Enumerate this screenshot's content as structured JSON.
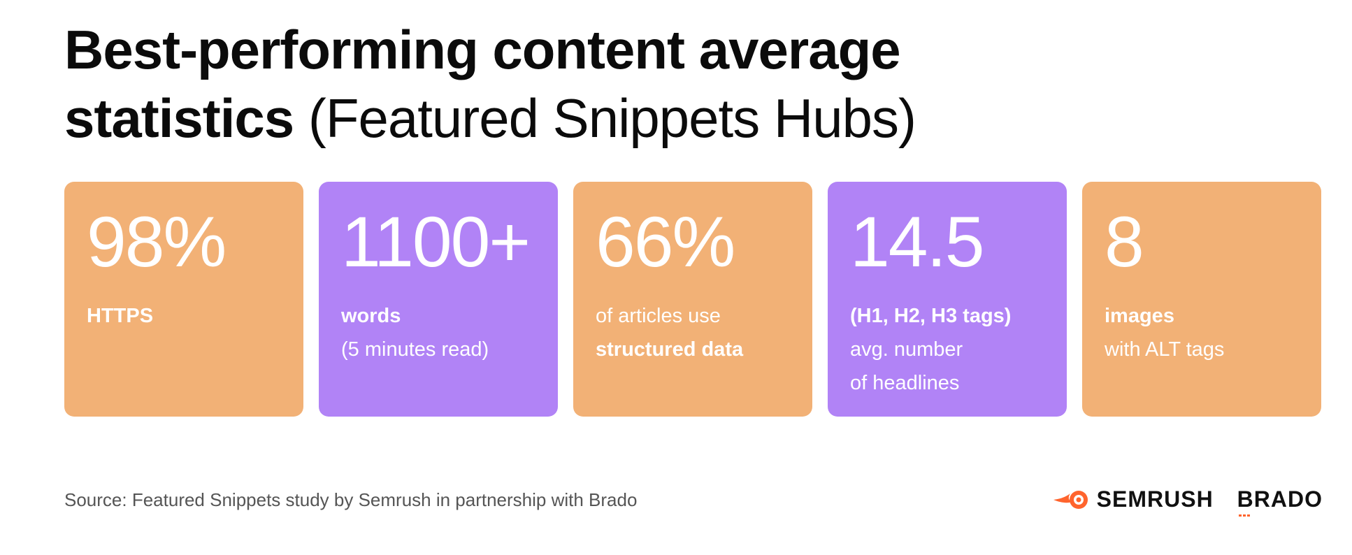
{
  "header": {
    "title_bold_1": "Best-performing content average",
    "title_bold_2": "statistics",
    "title_light": "(Featured Snippets Hubs)"
  },
  "cards": [
    {
      "value": "98%",
      "lines": [
        {
          "text": "HTTPS",
          "bold": true
        }
      ],
      "color": "#f2b176"
    },
    {
      "value": "1100+",
      "lines": [
        {
          "text": "words",
          "bold": true
        },
        {
          "text": "(5 minutes read)",
          "bold": false
        }
      ],
      "color": "#b183f6"
    },
    {
      "value": "66%",
      "lines": [
        {
          "text": "of articles use",
          "bold": false
        },
        {
          "text": "structured data",
          "bold": true
        }
      ],
      "color": "#f2b176"
    },
    {
      "value": "14.5",
      "lines": [
        {
          "text": "(H1, H2, H3 tags)",
          "bold": true
        },
        {
          "text": "avg. number",
          "bold": false
        },
        {
          "text": "of headlines",
          "bold": false
        }
      ],
      "color": "#b183f6"
    },
    {
      "value": "8",
      "lines": [
        {
          "text": "images",
          "bold": true
        },
        {
          "text": "with ALT tags",
          "bold": false
        }
      ],
      "color": "#f2b176"
    }
  ],
  "footer": {
    "source": "Source: Featured Snippets study by Semrush in partnership with Brado",
    "logo_semrush": "SEMRUSH",
    "logo_brado": "BRADO",
    "logo_semrush_icon": "semrush-flame-icon",
    "accent_color": "#ff642d"
  }
}
